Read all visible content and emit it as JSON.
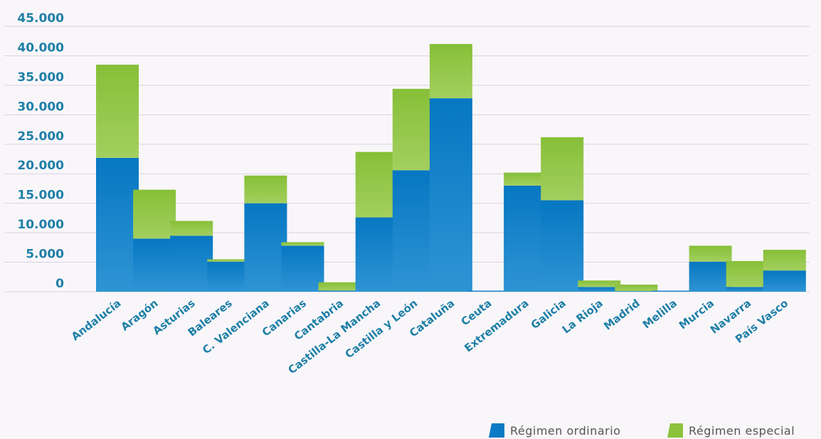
{
  "chart_data": {
    "type": "bar",
    "stacked": true,
    "categories": [
      "Andalucía",
      "Aragón",
      "Asturias",
      "Baleares",
      "C. Valenciana",
      "Canarias",
      "Cantabria",
      "Castilla-La Mancha",
      "Castilla y León",
      "Cataluña",
      "Ceuta",
      "Extremadura",
      "Galicia",
      "La Rioja",
      "Madrid",
      "Melilla",
      "Murcia",
      "Navarra",
      "País Vasco"
    ],
    "series": [
      {
        "name": "Régimen ordinario",
        "color": "#0a7bc4",
        "values": [
          22700,
          9000,
          9500,
          5100,
          15000,
          7800,
          200,
          12600,
          20600,
          32800,
          150,
          18000,
          15500,
          800,
          100,
          100,
          5100,
          800,
          3600
        ]
      },
      {
        "name": "Régimen especial",
        "color": "#8cc23c",
        "values": [
          15800,
          8300,
          2500,
          400,
          4700,
          600,
          1400,
          11100,
          13800,
          9200,
          0,
          2200,
          10700,
          1100,
          1100,
          0,
          2700,
          4400,
          3500
        ]
      }
    ],
    "y_ticks": [
      "0",
      "5.000",
      "10.000",
      "15.000",
      "20.000",
      "25.000",
      "30.000",
      "35.000",
      "40.000",
      "45.000"
    ],
    "ylim": [
      0,
      45000
    ],
    "grid": true,
    "legend_position": "bottom-right",
    "title": "",
    "xlabel": "",
    "ylabel": ""
  }
}
